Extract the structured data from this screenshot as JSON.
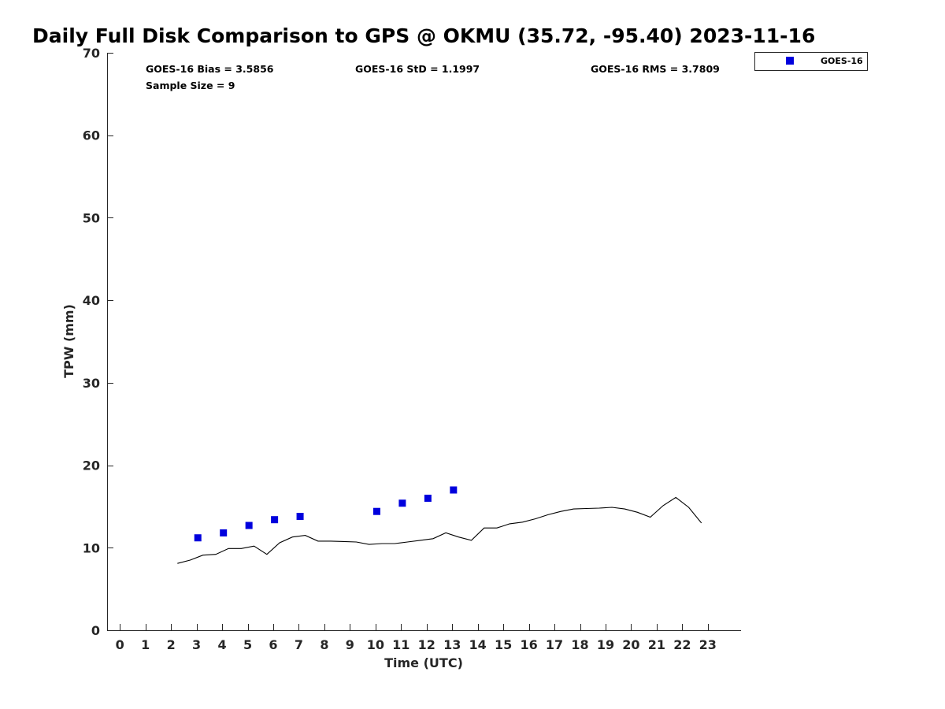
{
  "chart_data": {
    "type": "scatter",
    "title": "Daily Full Disk Comparison to GPS @ OKMU (35.72, -95.40) 2023-11-16",
    "xlabel": "Time (UTC)",
    "ylabel": "TPW (mm)",
    "xlim": [
      -0.5,
      24.3
    ],
    "ylim": [
      0,
      70
    ],
    "x_ticks": [
      0,
      1,
      2,
      3,
      4,
      5,
      6,
      7,
      8,
      9,
      10,
      11,
      12,
      13,
      14,
      15,
      16,
      17,
      18,
      19,
      20,
      21,
      22,
      23
    ],
    "y_ticks": [
      0,
      10,
      20,
      30,
      40,
      50,
      60,
      70
    ],
    "grid": false,
    "legend_position": "top-right",
    "stats": {
      "bias": "GOES-16 Bias = 3.5856",
      "std": "GOES-16 StD = 1.1997",
      "rms": "GOES-16 RMS = 3.7809",
      "sample": "Sample Size = 9"
    },
    "series": [
      {
        "name": "GOES-16",
        "kind": "scatter",
        "color": "#0000dd",
        "marker": "square",
        "x": [
          3.05,
          4.05,
          5.05,
          6.05,
          7.05,
          10.05,
          11.05,
          12.05,
          13.05
        ],
        "y": [
          11.2,
          11.8,
          12.7,
          13.4,
          13.8,
          14.4,
          15.4,
          16.0,
          17.0
        ]
      },
      {
        "kind": "line",
        "color": "#000000",
        "x": [
          2.25,
          2.75,
          3.25,
          3.75,
          4.25,
          4.75,
          5.25,
          5.75,
          6.25,
          6.75,
          7.25,
          7.75,
          8.25,
          8.75,
          9.25,
          9.75,
          10.25,
          10.75,
          11.25,
          11.75,
          12.25,
          12.75,
          13.25,
          13.75,
          14.25,
          14.75,
          15.25,
          15.75,
          16.25,
          16.75,
          17.25,
          17.75,
          18.25,
          18.75,
          19.25,
          19.75,
          20.25,
          20.75,
          21.25,
          21.75,
          22.25,
          22.75
        ],
        "y": [
          8.1,
          8.5,
          9.1,
          9.2,
          9.9,
          9.9,
          10.2,
          9.2,
          10.6,
          11.3,
          11.5,
          10.8,
          10.8,
          10.75,
          10.7,
          10.4,
          10.5,
          10.5,
          10.7,
          10.9,
          11.1,
          11.8,
          11.3,
          10.9,
          12.4,
          12.4,
          12.9,
          13.1,
          13.5,
          14.0,
          14.4,
          14.7,
          14.75,
          14.8,
          14.9,
          14.7,
          14.3,
          13.7,
          15.1,
          16.1,
          14.9,
          13.0
        ]
      }
    ]
  }
}
